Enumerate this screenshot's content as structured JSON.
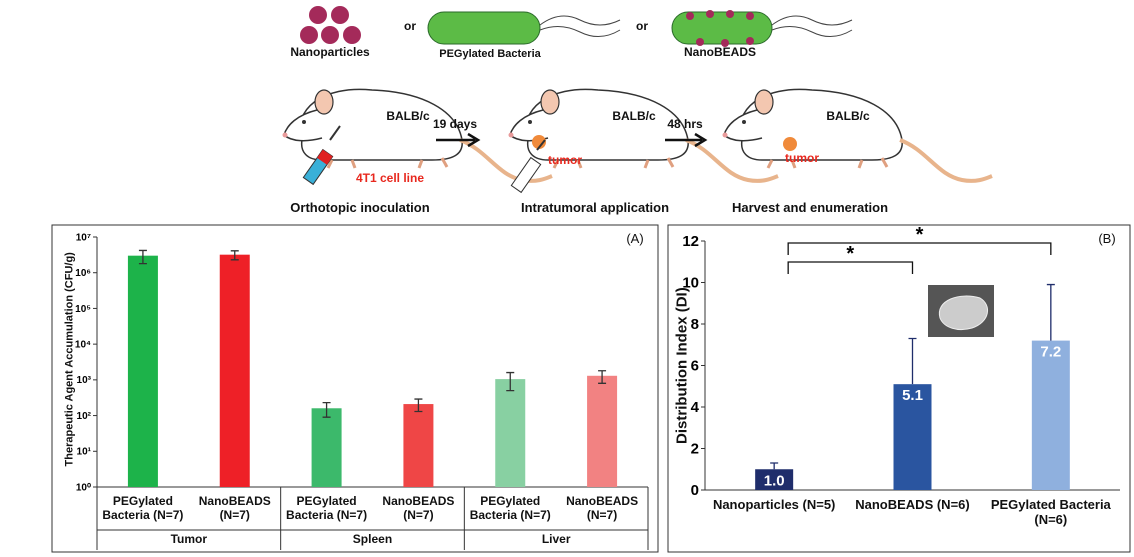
{
  "diagram": {
    "agents": [
      "Nanoparticles",
      "PEGylated Bacteria",
      "NanoBEADS"
    ],
    "connectors": [
      "or",
      "or"
    ],
    "strain_labels": [
      "BALB/c",
      "BALB/c",
      "BALB/c"
    ],
    "intervals": [
      "19 days",
      "48 hrs"
    ],
    "cell_line": "4T1 cell line",
    "tumor_labels": [
      "tumor",
      "tumor"
    ],
    "steps": [
      "Orthotopic inoculation",
      "Intratumoral application",
      "Harvest and enumeration"
    ]
  },
  "chart_data": [
    {
      "type": "bar",
      "panel_label": "(A)",
      "y_label": "Therapeutic Agent Accumulation (CFU/g)",
      "log_scale": true,
      "groups": [
        "Tumor",
        "Spleen",
        "Liver"
      ],
      "categories": [
        "PEGylated Bacteria (N=7)",
        "NanoBEADS (N=7)",
        "PEGylated Bacteria (N=7)",
        "NanoBEADS (N=7)",
        "PEGylated Bacteria (N=7)",
        "NanoBEADS (N=7)"
      ],
      "values": [
        3000000,
        3200000,
        160,
        210,
        1050,
        1300
      ],
      "errors": [
        1200000,
        900000,
        70,
        80,
        550,
        500
      ],
      "colors": [
        "#1db34a",
        "#ee2027",
        "#3cb96b",
        "#ef4646",
        "#88d0a2",
        "#f28282"
      ],
      "ylim": [
        1,
        10000000
      ],
      "yticks": [
        {
          "value": 1,
          "label": "10⁰"
        },
        {
          "value": 10,
          "label": "10¹"
        },
        {
          "value": 100,
          "label": "10²"
        },
        {
          "value": 1000,
          "label": "10³"
        },
        {
          "value": 10000,
          "label": "10⁴"
        },
        {
          "value": 100000,
          "label": "10⁵"
        },
        {
          "value": 1000000,
          "label": "10⁶"
        },
        {
          "value": 10000000,
          "label": "10⁷"
        }
      ]
    },
    {
      "type": "bar",
      "panel_label": "(B)",
      "y_label": "Distribution Index (DI)",
      "categories": [
        "Nanoparticles (N=5)",
        "NanoBEADS (N=6)",
        "PEGylated Bacteria (N=6)"
      ],
      "values": [
        1.0,
        5.1,
        7.2
      ],
      "value_labels": [
        "1.0",
        "5.1",
        "7.2"
      ],
      "errors": [
        0.3,
        2.2,
        2.7
      ],
      "colors": [
        "#1f2d6b",
        "#2a55a0",
        "#8fb0de"
      ],
      "ylim": [
        0,
        12
      ],
      "yticks": [
        0,
        2,
        4,
        6,
        8,
        10,
        12
      ],
      "annotations": [
        "*",
        "*"
      ]
    }
  ]
}
